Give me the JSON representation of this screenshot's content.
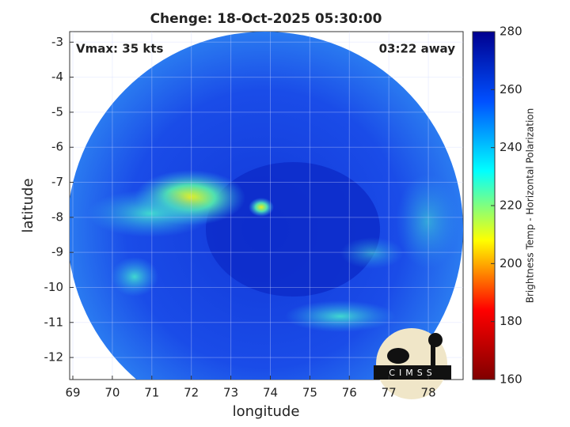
{
  "chart_data": {
    "type": "map",
    "title": "Chenge: 18-Oct-2025 05:30:00",
    "x_label": "longitude",
    "y_label": "latitude",
    "xlim": [
      68.92,
      78.88
    ],
    "ylim": [
      -12.63,
      -2.7
    ],
    "xticks": [
      69,
      70,
      71,
      72,
      73,
      74,
      75,
      76,
      77,
      78
    ],
    "yticks": [
      -3,
      -4,
      -5,
      -6,
      -7,
      -8,
      -9,
      -10,
      -11,
      -12
    ],
    "grid": true,
    "annotations": [
      "Vmax: 35 kts",
      "03:22 away"
    ],
    "logo": "CIMSS",
    "colorbar": {
      "label": "Brightness Temp - Horizontal Polarization",
      "lim": [
        160,
        280
      ],
      "ticks": [
        160,
        180,
        200,
        220,
        240,
        260,
        280
      ],
      "colors": [
        "#800000",
        "#ff0000",
        "#ffff00",
        "#00ffff",
        "#0050ff",
        "#00008f"
      ]
    }
  }
}
